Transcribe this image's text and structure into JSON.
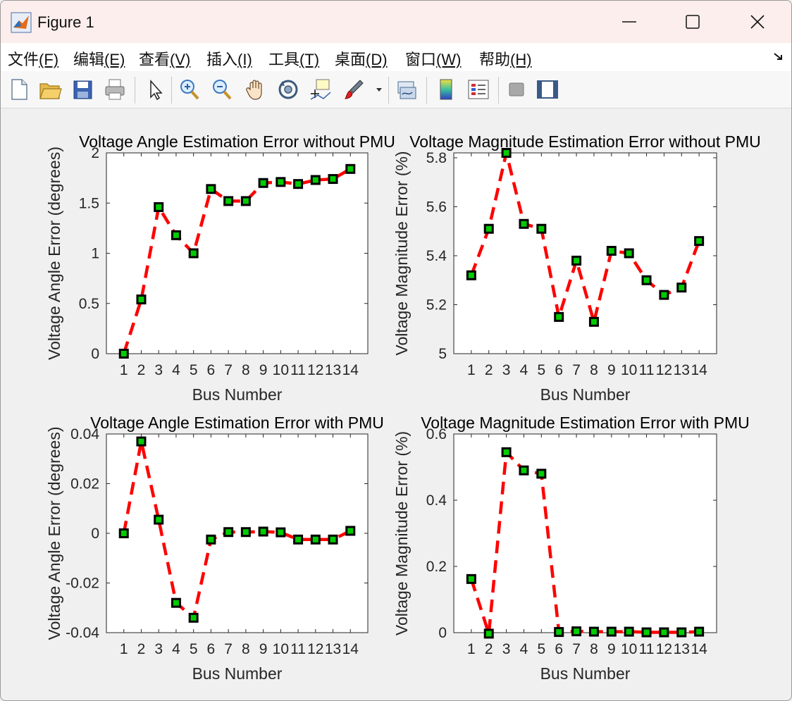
{
  "window": {
    "title": "Figure 1",
    "icon": "matlab-icon",
    "controls": [
      "minimize-icon",
      "maximize-icon",
      "close-icon"
    ]
  },
  "menu": [
    {
      "label": "文件",
      "key": "(F)"
    },
    {
      "label": "编辑",
      "key": "(E)"
    },
    {
      "label": "查看",
      "key": "(V)"
    },
    {
      "label": "插入",
      "key": "(I)"
    },
    {
      "label": "工具",
      "key": "(T)"
    },
    {
      "label": "桌面",
      "key": "(D)"
    },
    {
      "label": "窗口",
      "key": "(W)"
    },
    {
      "label": "帮助",
      "key": "(H)"
    }
  ],
  "toolbar": {
    "icons": [
      "new-figure-icon",
      "open-file-icon",
      "save-icon",
      "print-icon",
      "select-arrow-icon",
      "zoom-in-icon",
      "zoom-out-icon",
      "pan-hand-icon",
      "rotate-3d-icon",
      "data-cursor-icon",
      "brush-icon",
      "dropdown-caret-icon",
      "link-plot-icon",
      "colorbar-icon",
      "legend-icon",
      "hide-plot-tools-icon",
      "show-plot-tools-icon"
    ]
  },
  "style": {
    "line_color": "#ff0000",
    "marker_face": "#00cc00",
    "marker_edge": "#000000",
    "axes_bg": "#ffffff",
    "figure_bg": "#f0f0f0"
  },
  "chart_data": [
    {
      "type": "line",
      "title": "Voltage Angle Estimation Error without PMU",
      "xlabel": "Bus Number",
      "ylabel": "Voltage Angle Error (degrees)",
      "x": [
        1,
        2,
        3,
        4,
        5,
        6,
        7,
        8,
        9,
        10,
        11,
        12,
        13,
        14
      ],
      "values": [
        0.0,
        0.54,
        1.46,
        1.18,
        1.0,
        1.64,
        1.52,
        1.52,
        1.7,
        1.71,
        1.69,
        1.73,
        1.74,
        1.84
      ],
      "xlim": [
        0,
        15
      ],
      "ylim": [
        0,
        2
      ],
      "yticks": [
        0,
        0.5,
        1,
        1.5,
        2
      ],
      "ytick_labels": [
        "0",
        "0.5",
        "1",
        "1.5",
        "2"
      ],
      "xtick_labels": [
        "1",
        "2",
        "3",
        "4",
        "5",
        "6",
        "7",
        "8",
        "9",
        "10",
        "11",
        "12",
        "13",
        "14"
      ]
    },
    {
      "type": "line",
      "title": "Voltage Magnitude Estimation Error without PMU",
      "xlabel": "Bus Number",
      "ylabel": "Voltage Magnitude Error (%)",
      "x": [
        1,
        2,
        3,
        4,
        5,
        6,
        7,
        8,
        9,
        10,
        11,
        12,
        13,
        14
      ],
      "values": [
        5.32,
        5.51,
        5.82,
        5.53,
        5.51,
        5.15,
        5.38,
        5.13,
        5.42,
        5.41,
        5.3,
        5.24,
        5.27,
        5.46
      ],
      "xlim": [
        0,
        15
      ],
      "ylim": [
        5,
        5.82
      ],
      "yticks": [
        5,
        5.2,
        5.4,
        5.6,
        5.8
      ],
      "ytick_labels": [
        "5",
        "5.2",
        "5.4",
        "5.6",
        "5.8"
      ],
      "xtick_labels": [
        "1",
        "2",
        "3",
        "4",
        "5",
        "6",
        "7",
        "8",
        "9",
        "10",
        "11",
        "12",
        "13",
        "14"
      ]
    },
    {
      "type": "line",
      "title": "Voltage Angle Estimation Error with PMU",
      "xlabel": "Bus Number",
      "ylabel": "Voltage Angle Error (degrees)",
      "x": [
        1,
        2,
        3,
        4,
        5,
        6,
        7,
        8,
        9,
        10,
        11,
        12,
        13,
        14
      ],
      "values": [
        0.0,
        0.037,
        0.0055,
        -0.028,
        -0.034,
        -0.0025,
        0.0005,
        0.0005,
        0.0007,
        0.0004,
        -0.0025,
        -0.0025,
        -0.0025,
        0.001
      ],
      "xlim": [
        0,
        15
      ],
      "ylim": [
        -0.04,
        0.04
      ],
      "yticks": [
        -0.04,
        -0.02,
        0,
        0.02,
        0.04
      ],
      "ytick_labels": [
        "-0.04",
        "-0.02",
        "0",
        "0.02",
        "0.04"
      ],
      "xtick_labels": [
        "1",
        "2",
        "3",
        "4",
        "5",
        "6",
        "7",
        "8",
        "9",
        "10",
        "11",
        "12",
        "13",
        "14"
      ]
    },
    {
      "type": "line",
      "title": "Voltage Magnitude Estimation Error with PMU",
      "xlabel": "Bus Number",
      "ylabel": "Voltage Magnitude Error (%)",
      "x": [
        1,
        2,
        3,
        4,
        5,
        6,
        7,
        8,
        9,
        10,
        11,
        12,
        13,
        14
      ],
      "values": [
        0.162,
        -0.003,
        0.545,
        0.49,
        0.48,
        0.002,
        0.004,
        0.003,
        0.003,
        0.003,
        0.001,
        0.001,
        0.001,
        0.003
      ],
      "xlim": [
        0,
        15
      ],
      "ylim": [
        0,
        0.6
      ],
      "yticks": [
        0,
        0.2,
        0.4,
        0.6
      ],
      "ytick_labels": [
        "0",
        "0.2",
        "0.4",
        "0.6"
      ],
      "xtick_labels": [
        "1",
        "2",
        "3",
        "4",
        "5",
        "6",
        "7",
        "8",
        "9",
        "10",
        "11",
        "12",
        "13",
        "14"
      ]
    }
  ]
}
